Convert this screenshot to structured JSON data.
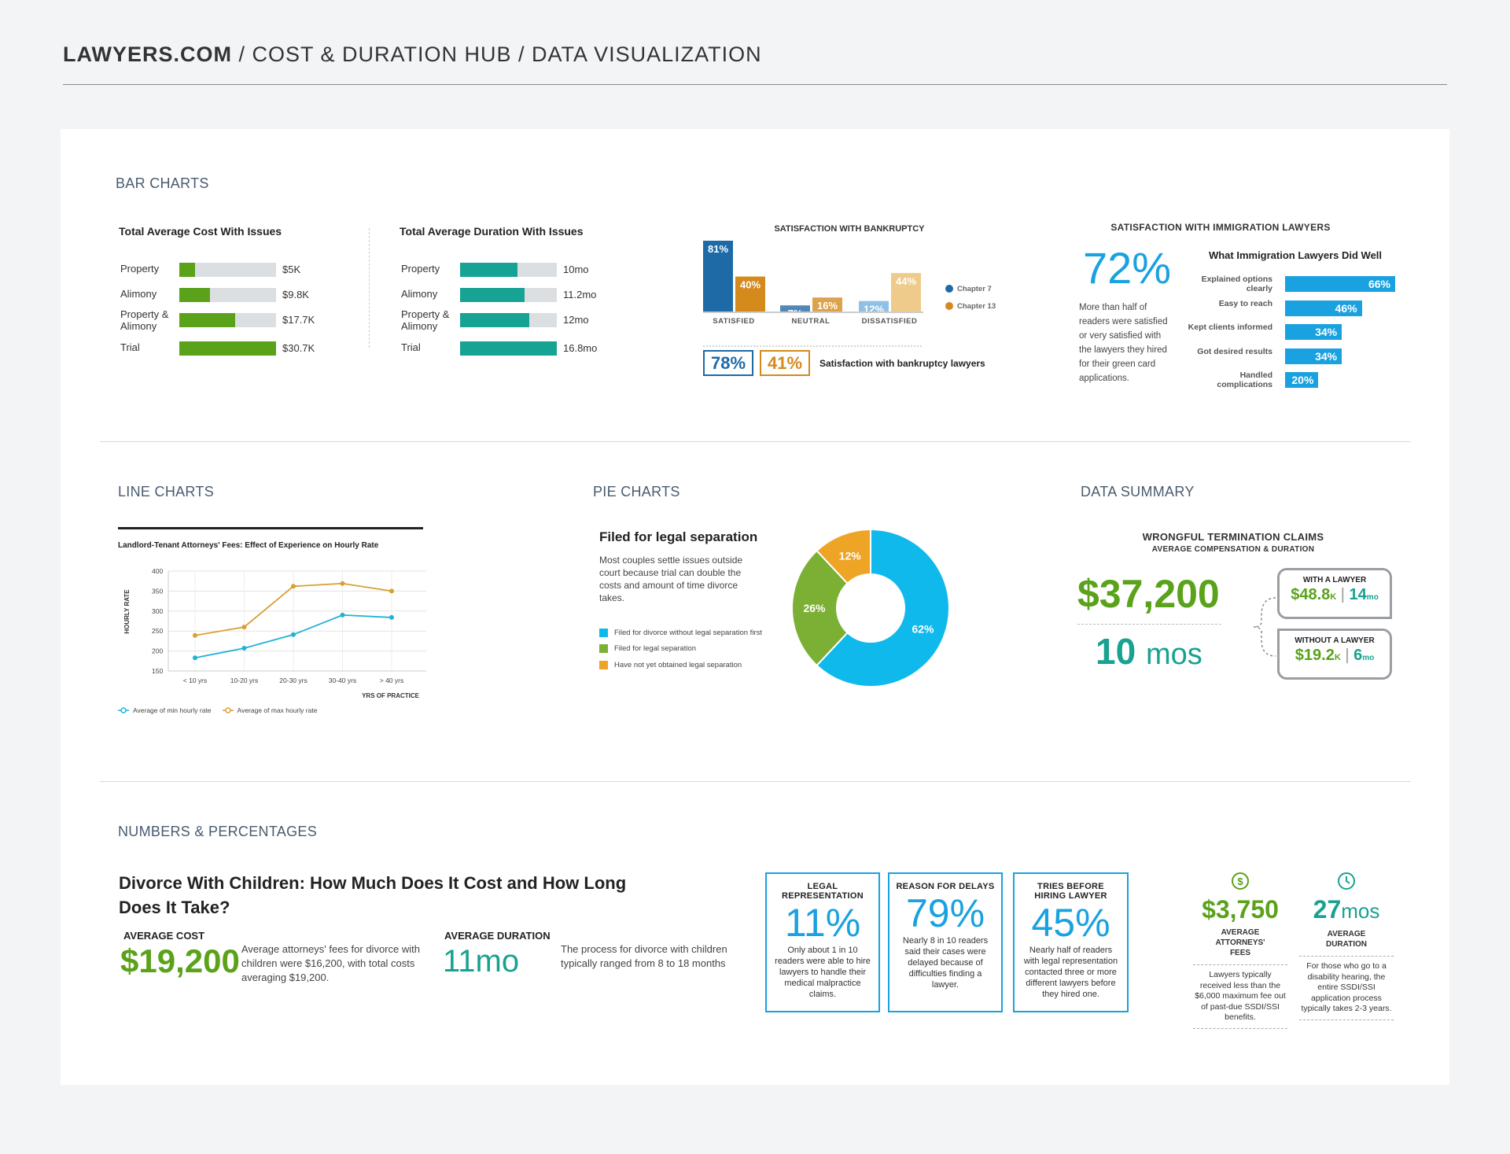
{
  "breadcrumb": {
    "brand": "LAWYERS.COM",
    "rest": " / COST & DURATION HUB / DATA VISUALIZATION"
  },
  "sections": {
    "bar": "BAR CHARTS",
    "line": "LINE CHARTS",
    "pie": "PIE CHARTS",
    "summary": "DATA SUMMARY",
    "numbers": "NUMBERS & PERCENTAGES"
  },
  "colors": {
    "green": "#5aa21a",
    "teal": "#17a394",
    "blue": "#1aa1e0",
    "ch7": "#1d6aa7",
    "ch13": "#d58a1c",
    "track": "#dcdfe2"
  },
  "chart_data": [
    {
      "type": "bar",
      "orientation": "horizontal",
      "title": "Total Average Cost With Issues",
      "categories": [
        "Property",
        "Alimony",
        "Property & Alimony",
        "Trial"
      ],
      "values": [
        5,
        9.8,
        17.7,
        30.7
      ],
      "labels": [
        "$5K",
        "$9.8K",
        "$17.7K",
        "$30.7K"
      ],
      "xlim": [
        0,
        30.7
      ]
    },
    {
      "type": "bar",
      "orientation": "horizontal",
      "title": "Total Average Duration With Issues",
      "categories": [
        "Property",
        "Alimony",
        "Property & Alimony",
        "Trial"
      ],
      "values": [
        10,
        11.2,
        12,
        16.8
      ],
      "labels": [
        "10mo",
        "11.2mo",
        "12mo",
        "16.8mo"
      ],
      "xlim": [
        0,
        16.8
      ]
    },
    {
      "type": "bar",
      "title": "SATISFACTION WITH BANKRUPTCY",
      "categories": [
        "SATISFIED",
        "NEUTRAL",
        "DISSATISFIED"
      ],
      "series": [
        {
          "name": "Chapter 7",
          "values": [
            81,
            7,
            12
          ],
          "labels": [
            "81%",
            "7%",
            "12%"
          ]
        },
        {
          "name": "Chapter 13",
          "values": [
            40,
            16,
            44
          ],
          "labels": [
            "40%",
            "16%",
            "44%"
          ]
        }
      ],
      "legend": "right",
      "summary": {
        "ch7": "78%",
        "ch13": "41%",
        "text": "Satisfaction with bankruptcy lawyers"
      }
    },
    {
      "type": "bar",
      "orientation": "horizontal",
      "title": "SATISFACTION WITH IMMIGRATION LAWYERS",
      "subtitle": "What Immigration Lawyers Did Well",
      "headline": "72%",
      "description": "More than half of readers were satisfied or very satisfied with the lawyers they hired for their green card applications.",
      "categories": [
        "Explained options clearly",
        "Easy to reach",
        "Kept clients informed",
        "Got desired results",
        "Handled complications"
      ],
      "values": [
        66,
        46,
        34,
        34,
        20
      ],
      "labels": [
        "66%",
        "46%",
        "34%",
        "34%",
        "20%"
      ],
      "xlim": [
        0,
        66
      ]
    },
    {
      "type": "line",
      "title": "Landlord-Tenant Attorneys' Fees: Effect of Experience on Hourly Rate",
      "x": [
        "< 10 yrs",
        "10-20 yrs",
        "20-30 yrs",
        "30-40 yrs",
        "> 40 yrs"
      ],
      "xlabel": "YRS OF PRACTICE",
      "ylabel": "HOURLY RATE",
      "ylim": [
        150,
        400
      ],
      "yticks": [
        "400",
        "350",
        "300",
        "250",
        "200",
        "150"
      ],
      "grid": true,
      "legend": "bottom-left",
      "series": [
        {
          "name": "Average of min hourly rate",
          "values": [
            183,
            207,
            241,
            290,
            284
          ]
        },
        {
          "name": "Average of max hourly rate",
          "values": [
            239,
            260,
            362,
            369,
            350
          ]
        }
      ]
    },
    {
      "type": "pie",
      "donut": true,
      "title": "Filed for legal separation",
      "description": "Most couples settle issues outside court because trial can double the costs and amount of time divorce takes.",
      "categories": [
        "Filed for divorce without legal separation first",
        "Filed for legal separation",
        "Have not yet obtained legal separation"
      ],
      "values": [
        62,
        26,
        12
      ],
      "labels": [
        "62%",
        "26%",
        "12%"
      ],
      "legend": "left"
    }
  ],
  "summary": {
    "title": "WRONGFUL TERMINATION CLAIMS",
    "subtitle": "AVERAGE COMPENSATION & DURATION",
    "amount": "$37,200",
    "duration_num": "10",
    "duration_unit": "mos",
    "with": {
      "label": "WITH A LAWYER",
      "amount": "$48.8",
      "amount_unit": "K",
      "sep": "|",
      "dur": "14",
      "dur_unit": "mo"
    },
    "without": {
      "label": "WITHOUT A LAWYER",
      "amount": "$19.2",
      "amount_unit": "K",
      "sep": "|",
      "dur": "6",
      "dur_unit": "mo"
    }
  },
  "numbers": {
    "title": "Divorce With Children: How Much Does It Cost and How Long Does It Take?",
    "cost_label": "AVERAGE COST",
    "cost_value": "$19,200",
    "cost_desc": "Average attorneys' fees for divorce with children were $16,200, with total costs averaging $19,200.",
    "dur_label": "AVERAGE DURATION",
    "dur_value": "11mo",
    "dur_desc": "The process for divorce with children typically ranged from 8 to 18 months",
    "boxes": [
      {
        "title": "LEGAL REPRESENTATION",
        "value": "11%",
        "desc": "Only about 1 in 10 readers were able to hire lawyers to handle their medical malpractice claims."
      },
      {
        "title": "REASON FOR DELAYS",
        "value": "79%",
        "desc": "Nearly 8 in 10 readers said their cases were delayed because of difficulties finding a lawyer."
      },
      {
        "title": "TRIES BEFORE HIRING LAWYER",
        "value": "45%",
        "desc": "Nearly half of readers with legal representation contacted three or more different lawyers before they hired one."
      }
    ],
    "fees": {
      "value": "$3,750",
      "label": "AVERAGE ATTORNEYS' FEES",
      "desc": "Lawyers typically received less than the $6,000 maximum fee out of past-due SSDI/SSI benefits."
    },
    "ssdi_dur": {
      "value": "27",
      "unit": "mos",
      "label": "AVERAGE DURATION",
      "desc": "For those who go to a disability hearing, the entire SSDI/SSI application process typically takes 2-3 years."
    }
  }
}
